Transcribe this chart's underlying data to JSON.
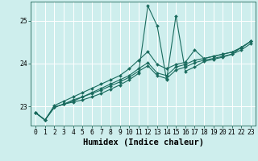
{
  "xlabel": "Humidex (Indice chaleur)",
  "bg_color": "#ceeeed",
  "grid_color": "#ffffff",
  "line_color": "#1a6b5e",
  "x_values": [
    0,
    1,
    2,
    3,
    4,
    5,
    6,
    7,
    8,
    9,
    10,
    11,
    12,
    13,
    14,
    15,
    16,
    17,
    18,
    19,
    20,
    21,
    22,
    23
  ],
  "series": [
    [
      22.85,
      22.68,
      22.98,
      23.05,
      23.1,
      23.15,
      23.22,
      23.3,
      23.4,
      23.5,
      23.62,
      23.77,
      25.35,
      24.88,
      23.62,
      25.12,
      23.82,
      23.92,
      24.05,
      24.1,
      24.15,
      24.22,
      24.38,
      24.52
    ],
    [
      22.85,
      22.68,
      22.98,
      23.05,
      23.12,
      23.22,
      23.3,
      23.38,
      23.48,
      23.57,
      23.68,
      23.82,
      23.95,
      23.72,
      23.65,
      23.85,
      23.92,
      24.02,
      24.08,
      24.12,
      24.17,
      24.22,
      24.32,
      24.47
    ],
    [
      22.85,
      22.68,
      22.98,
      23.05,
      23.15,
      23.22,
      23.32,
      23.42,
      23.52,
      23.62,
      23.72,
      23.88,
      24.02,
      23.78,
      23.72,
      23.92,
      23.98,
      24.08,
      24.12,
      24.17,
      24.22,
      24.27,
      24.37,
      24.52
    ],
    [
      22.85,
      22.68,
      23.02,
      23.12,
      23.22,
      23.32,
      23.42,
      23.52,
      23.62,
      23.72,
      23.88,
      24.08,
      24.28,
      23.98,
      23.88,
      23.98,
      24.03,
      24.32,
      24.12,
      24.17,
      24.22,
      24.27,
      24.38,
      24.52
    ]
  ],
  "ylim": [
    22.55,
    25.45
  ],
  "yticks": [
    23,
    24,
    25
  ],
  "xticks": [
    0,
    1,
    2,
    3,
    4,
    5,
    6,
    7,
    8,
    9,
    10,
    11,
    12,
    13,
    14,
    15,
    16,
    17,
    18,
    19,
    20,
    21,
    22,
    23
  ],
  "marker": "D",
  "markersize": 2.0,
  "linewidth": 0.8,
  "tick_fontsize": 5.8,
  "xlabel_fontsize": 7.5
}
